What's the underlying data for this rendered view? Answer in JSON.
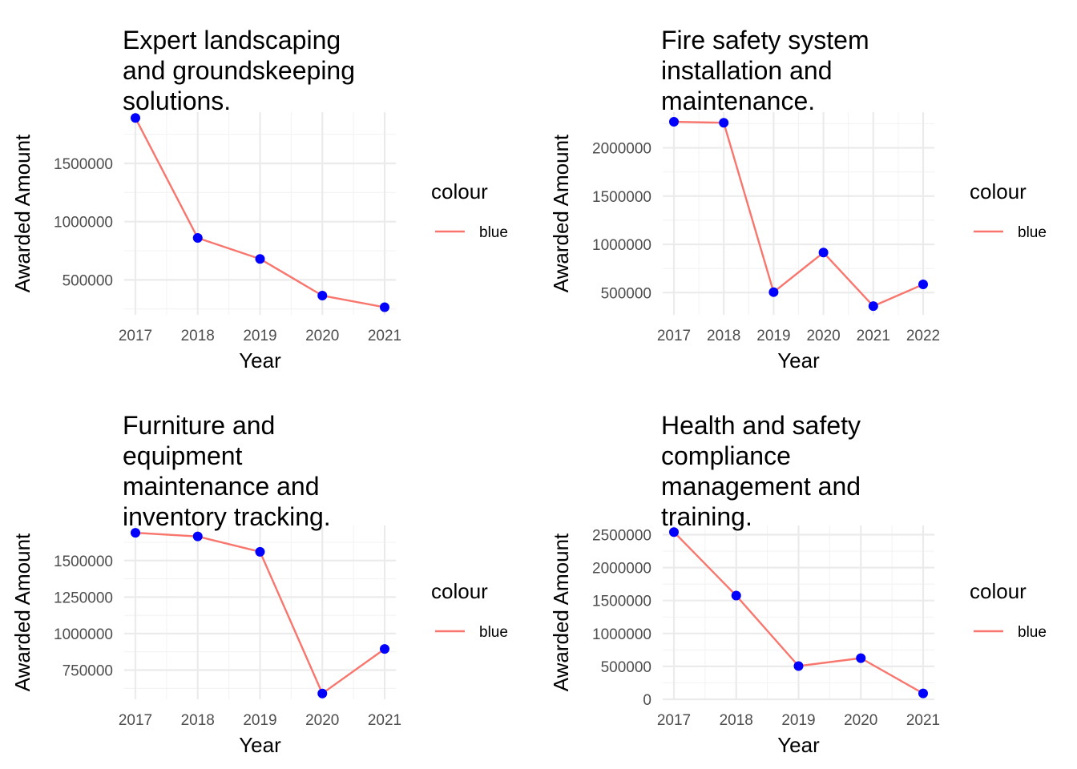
{
  "chart_data": [
    {
      "type": "line",
      "title_lines": [
        "Expert landscaping",
        "and groundskeeping",
        "solutions."
      ],
      "xlabel": "Year",
      "ylabel": "Awarded Amount",
      "x": [
        "2017",
        "2018",
        "2019",
        "2020",
        "2021"
      ],
      "series": [
        {
          "name": "blue",
          "values": [
            1890000,
            860000,
            680000,
            365000,
            265000
          ]
        }
      ],
      "ylim": [
        200000,
        1940000
      ],
      "yticks": [
        500000,
        1000000,
        1500000
      ],
      "ytick_labels": [
        "500000",
        "1000000",
        "1500000"
      ],
      "legend": {
        "title": "colour",
        "label": "blue"
      },
      "line_color": "#F8766D",
      "point_color": "#0000FF"
    },
    {
      "type": "line",
      "title_lines": [
        "Fire safety system",
        "installation and",
        "maintenance."
      ],
      "xlabel": "Year",
      "ylabel": "Awarded Amount",
      "x": [
        "2017",
        "2018",
        "2019",
        "2020",
        "2021",
        "2022"
      ],
      "series": [
        {
          "name": "blue",
          "values": [
            2270000,
            2260000,
            505000,
            915000,
            360000,
            585000
          ]
        }
      ],
      "ylim": [
        270000,
        2370000
      ],
      "yticks": [
        500000,
        1000000,
        1500000,
        2000000
      ],
      "ytick_labels": [
        "500000",
        "1000000",
        "1500000",
        "2000000"
      ],
      "legend": {
        "title": "colour",
        "label": "blue"
      },
      "line_color": "#F8766D",
      "point_color": "#0000FF"
    },
    {
      "type": "line",
      "title_lines": [
        "Furniture and",
        "equipment",
        "maintenance and",
        "inventory tracking."
      ],
      "xlabel": "Year",
      "ylabel": "Awarded Amount",
      "x": [
        "2017",
        "2018",
        "2019",
        "2020",
        "2021"
      ],
      "series": [
        {
          "name": "blue",
          "values": [
            1690000,
            1665000,
            1560000,
            590000,
            895000
          ]
        }
      ],
      "ylim": [
        550000,
        1740000
      ],
      "yticks": [
        750000,
        1000000,
        1250000,
        1500000
      ],
      "ytick_labels": [
        "750000",
        "1000000",
        "1250000",
        "1500000"
      ],
      "legend": {
        "title": "colour",
        "label": "blue"
      },
      "line_color": "#F8766D",
      "point_color": "#0000FF"
    },
    {
      "type": "line",
      "title_lines": [
        "Health and safety",
        "compliance",
        "management and",
        "training."
      ],
      "xlabel": "Year",
      "ylabel": "Awarded Amount",
      "x": [
        "2017",
        "2018",
        "2019",
        "2020",
        "2021"
      ],
      "series": [
        {
          "name": "blue",
          "values": [
            2540000,
            1575000,
            505000,
            625000,
            90000
          ]
        }
      ],
      "ylim": [
        0,
        2640000
      ],
      "yticks": [
        0,
        500000,
        1000000,
        1500000,
        2000000,
        2500000
      ],
      "ytick_labels": [
        "0",
        "500000",
        "1000000",
        "1500000",
        "2000000",
        "2500000"
      ],
      "legend": {
        "title": "colour",
        "label": "blue"
      },
      "line_color": "#F8766D",
      "point_color": "#0000FF"
    }
  ]
}
